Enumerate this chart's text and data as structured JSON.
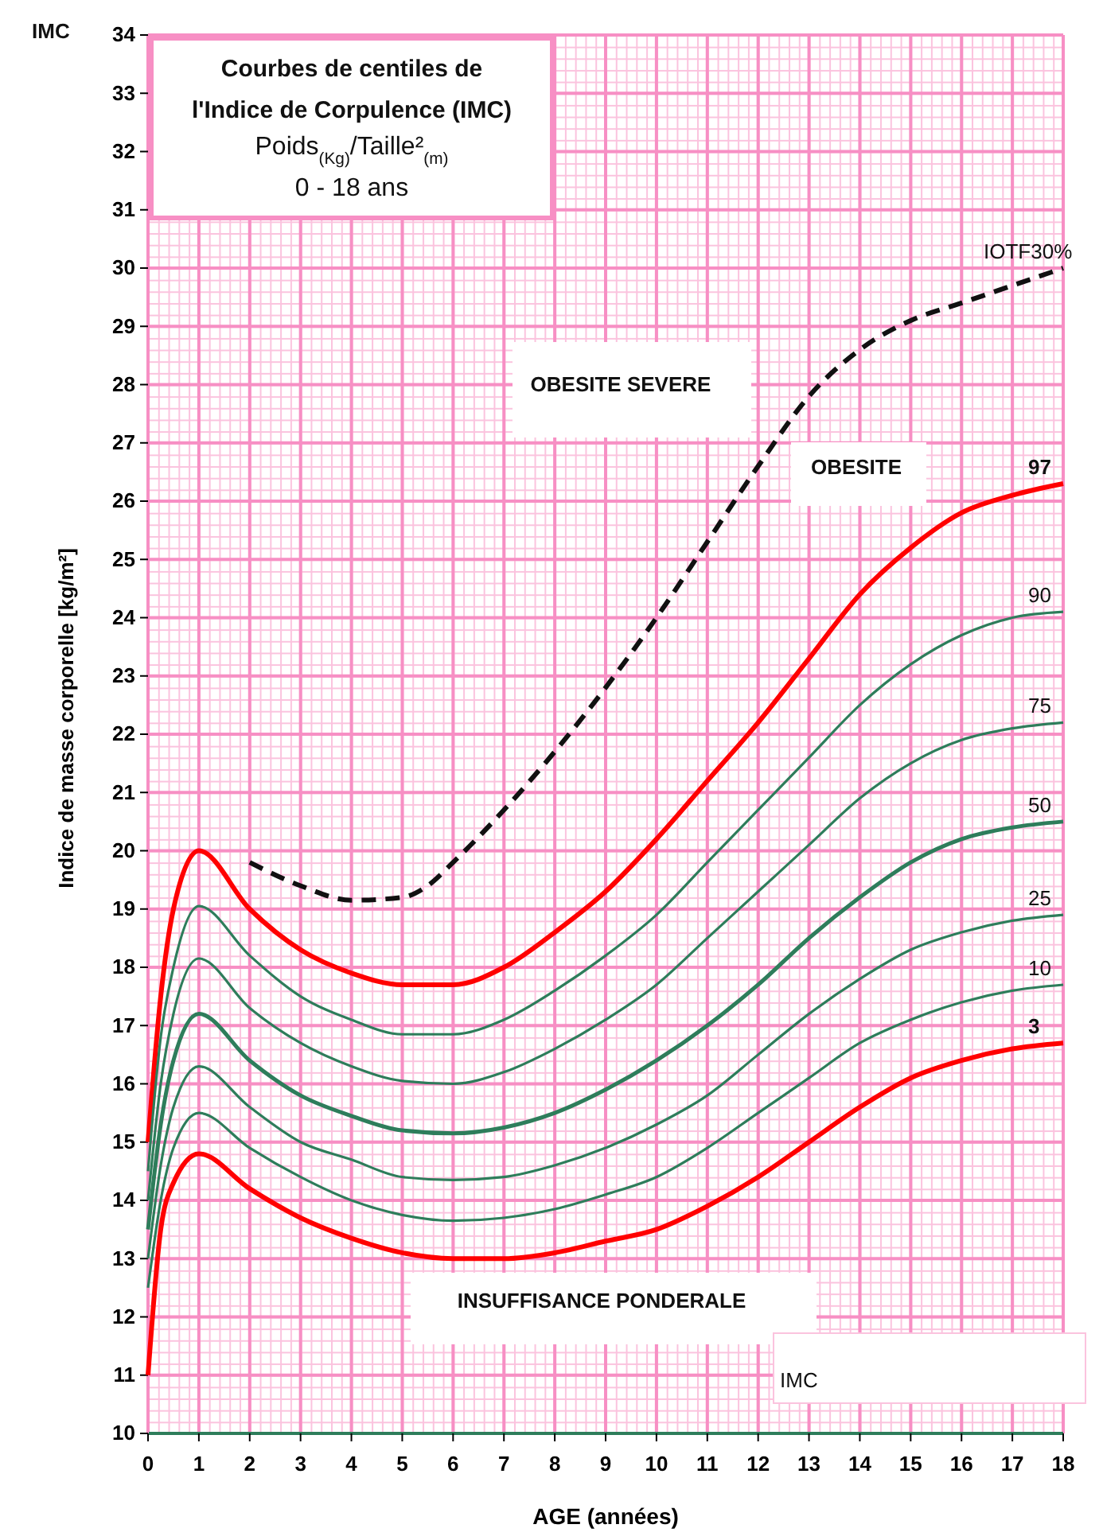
{
  "chart_data": {
    "type": "line",
    "title": "Courbes de centiles de l'Indice de Corpulence (IMC)",
    "subtitle": "Poids$_{(Kg)}$/Taille²$_{(m)}$ 0 - 18 ans",
    "xlabel": "AGE (années)",
    "ylabel": "Indice de masse corporelle [kg/m²]",
    "annotations": [
      "IMC",
      "OBESITE SEVERE",
      "OBESITE",
      "INSUFFISANCE PONDERALE",
      "IMC"
    ],
    "x": [
      0,
      0.25,
      0.5,
      1,
      2,
      3,
      4,
      5,
      6,
      7,
      8,
      9,
      10,
      11,
      12,
      13,
      14,
      15,
      16,
      17,
      18
    ],
    "series": [
      {
        "name": "97",
        "color": "#ff0000",
        "values": [
          15,
          17.5,
          19,
          20,
          19,
          18.3,
          17.9,
          17.7,
          17.7,
          18,
          18.6,
          19.3,
          20.2,
          21.2,
          22.2,
          23.3,
          24.4,
          25.2,
          25.8,
          26.1,
          26.3
        ]
      },
      {
        "name": "90",
        "color": "#2e7d5b",
        "values": [
          14.5,
          16.8,
          18,
          19.05,
          18.2,
          17.5,
          17.1,
          16.85,
          16.85,
          17.1,
          17.6,
          18.2,
          18.9,
          19.8,
          20.7,
          21.6,
          22.5,
          23.2,
          23.7,
          24,
          24.1
        ]
      },
      {
        "name": "75",
        "color": "#2e7d5b",
        "values": [
          14,
          16,
          17.2,
          18.15,
          17.3,
          16.7,
          16.3,
          16.05,
          16,
          16.2,
          16.6,
          17.1,
          17.7,
          18.5,
          19.3,
          20.1,
          20.9,
          21.5,
          21.9,
          22.1,
          22.2
        ]
      },
      {
        "name": "50",
        "color": "#2e7d5b",
        "values": [
          13.5,
          15.3,
          16.4,
          17.2,
          16.4,
          15.8,
          15.45,
          15.2,
          15.15,
          15.25,
          15.5,
          15.9,
          16.4,
          17,
          17.7,
          18.5,
          19.2,
          19.8,
          20.2,
          20.4,
          20.5
        ]
      },
      {
        "name": "25",
        "color": "#2e7d5b",
        "values": [
          13,
          14.6,
          15.6,
          16.3,
          15.6,
          15,
          14.7,
          14.4,
          14.35,
          14.4,
          14.6,
          14.9,
          15.3,
          15.8,
          16.5,
          17.2,
          17.8,
          18.3,
          18.6,
          18.8,
          18.9
        ]
      },
      {
        "name": "10",
        "color": "#2e7d5b",
        "values": [
          12.5,
          14,
          14.9,
          15.5,
          14.9,
          14.4,
          14,
          13.75,
          13.65,
          13.7,
          13.85,
          14.1,
          14.4,
          14.9,
          15.5,
          16.1,
          16.7,
          17.1,
          17.4,
          17.6,
          17.7
        ]
      },
      {
        "name": "3",
        "color": "#ff0000",
        "values": [
          11,
          13.5,
          14.3,
          14.8,
          14.2,
          13.7,
          13.35,
          13.1,
          13,
          13,
          13.1,
          13.3,
          13.5,
          13.9,
          14.4,
          15,
          15.6,
          16.1,
          16.4,
          16.6,
          16.7
        ]
      },
      {
        "name": "IOTF30%",
        "color": "#111111",
        "line_style": "dashed",
        "x": [
          2,
          3,
          4,
          5,
          5.5,
          6,
          7,
          8,
          9,
          10,
          11,
          12,
          13,
          14,
          15,
          16,
          17,
          18
        ],
        "values": [
          19.8,
          19.4,
          19.15,
          19.2,
          19.4,
          19.8,
          20.7,
          21.7,
          22.8,
          24,
          25.3,
          26.6,
          27.8,
          28.6,
          29.1,
          29.4,
          29.7,
          30
        ]
      }
    ],
    "xlim": [
      0,
      18
    ],
    "xticks": [
      0,
      1,
      2,
      3,
      4,
      5,
      6,
      7,
      8,
      9,
      10,
      11,
      12,
      13,
      14,
      15,
      16,
      17,
      18
    ],
    "ylim": [
      10,
      34
    ],
    "yticks": [
      10,
      11,
      12,
      13,
      14,
      15,
      16,
      17,
      18,
      19,
      20,
      21,
      22,
      23,
      24,
      25,
      26,
      27,
      28,
      29,
      30,
      31,
      32,
      33,
      34
    ],
    "grid": true,
    "line_style": "solid",
    "marker": "none"
  }
}
